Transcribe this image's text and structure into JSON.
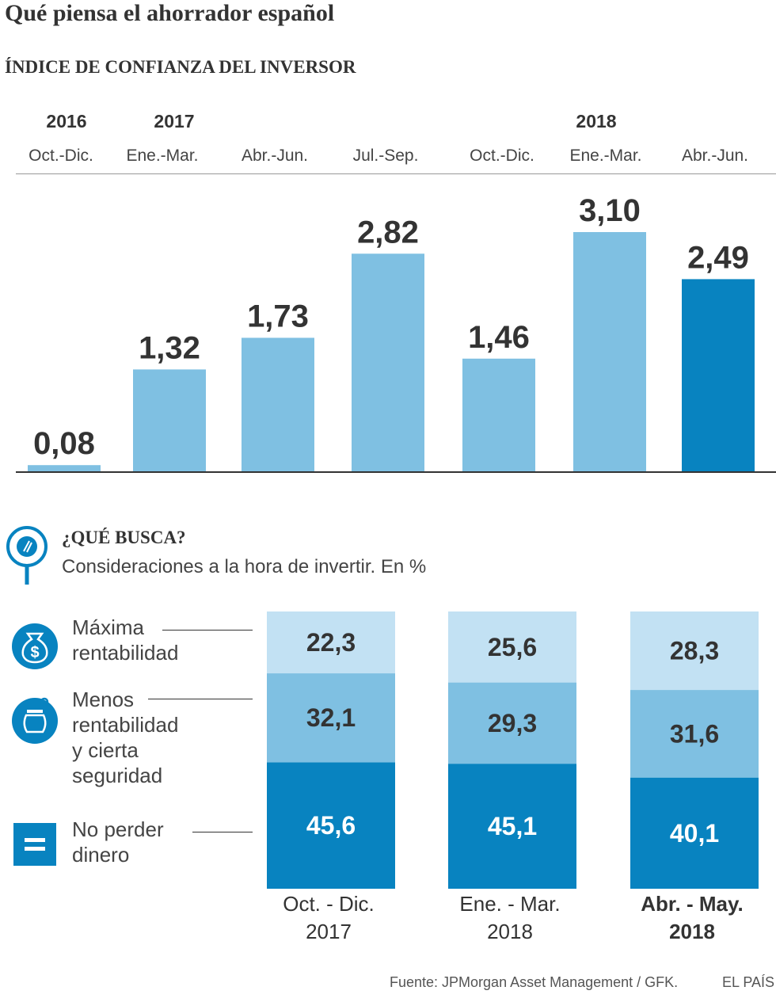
{
  "title": "Qué piensa el ahorrador español",
  "subtitle": "ÍNDICE DE CONFIANZA DEL INVERSOR",
  "colors": {
    "bar_light": "#7fc0e2",
    "bar_highlight": "#0883c0",
    "seg_light": "#c2e1f3",
    "seg_mid": "#7fc0e2",
    "seg_dark": "#0883c0",
    "text": "#333333"
  },
  "chart_data": [
    {
      "type": "bar",
      "title": "ÍNDICE DE CONFIANZA DEL INVERSOR",
      "years": [
        "2016",
        "2017",
        "2018"
      ],
      "categories": [
        "Oct.-Dic.",
        "Ene.-Mar.",
        "Abr.-Jun.",
        "Jul.-Sep.",
        "Oct.-Dic.",
        "Ene.-Mar.",
        "Abr.-Jun."
      ],
      "values": [
        0.08,
        1.32,
        1.73,
        2.82,
        1.46,
        3.1,
        2.49
      ],
      "value_labels": [
        "0,08",
        "1,32",
        "1,73",
        "2,82",
        "1,46",
        "3,10",
        "2,49"
      ],
      "highlighted_index": 6,
      "ylim": [
        0,
        3.4
      ],
      "grid": false
    },
    {
      "type": "bar",
      "stacked": true,
      "title": "¿QUÉ BUSCA?",
      "subtitle": "Consideraciones a la hora de invertir. En %",
      "categories": [
        "Oct. - Dic.\n2017",
        "Ene. - Mar.\n2018",
        "Abr. - May.\n2018"
      ],
      "series": [
        {
          "name": "No perder\ndinero",
          "values": [
            45.6,
            45.1,
            40.1
          ],
          "labels": [
            "45,6",
            "45,1",
            "40,1"
          ]
        },
        {
          "name": "Menos\nrentabilidad\ny cierta\nseguridad",
          "values": [
            32.1,
            29.3,
            31.6
          ],
          "labels": [
            "32,1",
            "29,3",
            "31,6"
          ]
        },
        {
          "name": "Máxima\nrentabilidad",
          "values": [
            22.3,
            25.6,
            28.3
          ],
          "labels": [
            "22,3",
            "25,6",
            "28,3"
          ]
        }
      ],
      "bold_category_index": 2,
      "ylim": [
        0,
        100
      ]
    }
  ],
  "icons": {
    "search": "magnifier-icon",
    "max_return": "money-bag-icon",
    "less_return": "piggy-bank-icon",
    "no_loss": "equals-icon"
  },
  "footer": {
    "source": "Fuente: JPMorgan Asset Management / GFK.",
    "brand": "EL PAÍS"
  }
}
